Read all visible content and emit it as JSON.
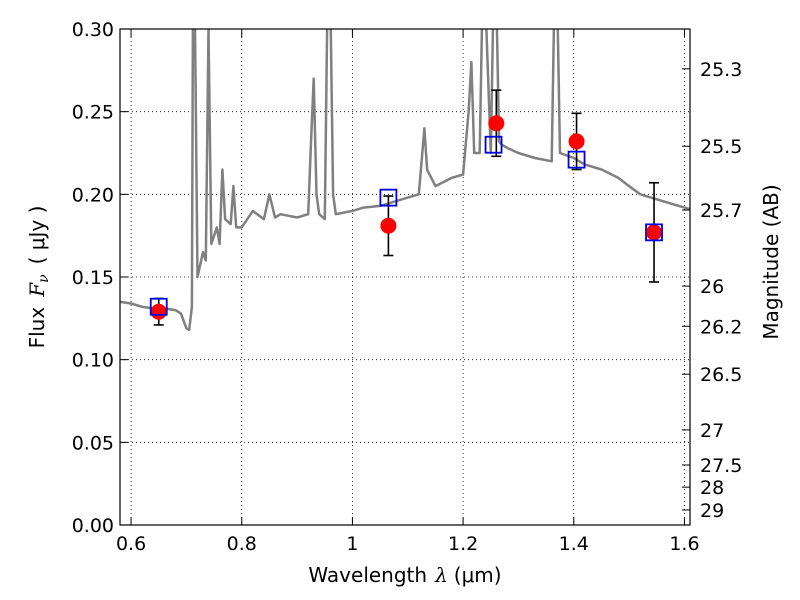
{
  "chart_data": {
    "type": "scatter",
    "title": "",
    "xlabel": {
      "text": "Wavelength",
      "symbol": "λ",
      "unit": "(μm)"
    },
    "ylabel": {
      "text": "Flux",
      "symbol": "F",
      "subscript": "ν",
      "unit": "( μJy )"
    },
    "y2label": "Magnitude (AB)",
    "xlim": [
      0.58,
      1.61
    ],
    "ylim": [
      0.0,
      0.3
    ],
    "grid": true,
    "xticks": [
      0.6,
      0.8,
      1.0,
      1.2,
      1.4,
      1.6
    ],
    "xtick_labels": [
      "0.6",
      "0.8",
      "1",
      "1.2",
      "1.4",
      "1.6"
    ],
    "yticks": [
      0.0,
      0.05,
      0.1,
      0.15,
      0.2,
      0.25,
      0.3
    ],
    "ytick_labels": [
      "0.00",
      "0.05",
      "0.10",
      "0.15",
      "0.20",
      "0.25",
      "0.30"
    ],
    "y2ticks": [
      {
        "label": "25.3",
        "flux": 0.2759
      },
      {
        "label": "25.5",
        "flux": 0.2291
      },
      {
        "label": "25.7",
        "flux": 0.1905
      },
      {
        "label": "26",
        "flux": 0.1445
      },
      {
        "label": "26.2",
        "flux": 0.1202
      },
      {
        "label": "26.5",
        "flux": 0.0912
      },
      {
        "label": "27",
        "flux": 0.0575
      },
      {
        "label": "27.5",
        "flux": 0.0363
      },
      {
        "label": "28",
        "flux": 0.0229
      },
      {
        "label": "29",
        "flux": 0.0091
      }
    ],
    "series": [
      {
        "kind": "model_sed",
        "color": "#808080",
        "x": [
          0.58,
          0.6,
          0.62,
          0.64,
          0.66,
          0.68,
          0.69,
          0.7,
          0.705,
          0.71,
          0.712,
          0.715,
          0.72,
          0.73,
          0.735,
          0.74,
          0.745,
          0.75,
          0.755,
          0.76,
          0.765,
          0.77,
          0.78,
          0.785,
          0.79,
          0.8,
          0.82,
          0.84,
          0.85,
          0.86,
          0.87,
          0.9,
          0.92,
          0.925,
          0.93,
          0.935,
          0.94,
          0.95,
          0.955,
          0.96,
          0.965,
          0.97,
          1.0,
          1.02,
          1.05,
          1.08,
          1.1,
          1.12,
          1.125,
          1.13,
          1.135,
          1.15,
          1.18,
          1.2,
          1.21,
          1.215,
          1.22,
          1.23,
          1.235,
          1.24,
          1.25,
          1.255,
          1.26,
          1.265,
          1.27,
          1.28,
          1.3,
          1.33,
          1.36,
          1.365,
          1.37,
          1.375,
          1.4,
          1.41,
          1.42,
          1.45,
          1.48,
          1.5,
          1.52,
          1.55,
          1.58,
          1.6,
          1.61
        ],
        "y": [
          0.135,
          0.134,
          0.132,
          0.131,
          0.131,
          0.13,
          0.128,
          0.119,
          0.118,
          0.132,
          0.32,
          0.32,
          0.15,
          0.165,
          0.16,
          0.3,
          0.17,
          0.175,
          0.18,
          0.17,
          0.215,
          0.185,
          0.182,
          0.205,
          0.18,
          0.18,
          0.19,
          0.185,
          0.2,
          0.186,
          0.188,
          0.186,
          0.188,
          0.23,
          0.27,
          0.2,
          0.188,
          0.185,
          0.32,
          0.32,
          0.2,
          0.188,
          0.19,
          0.192,
          0.193,
          0.196,
          0.198,
          0.2,
          0.22,
          0.24,
          0.215,
          0.205,
          0.21,
          0.212,
          0.25,
          0.28,
          0.225,
          0.225,
          0.32,
          0.32,
          0.225,
          0.32,
          0.32,
          0.232,
          0.23,
          0.228,
          0.225,
          0.222,
          0.22,
          0.32,
          0.32,
          0.225,
          0.222,
          0.22,
          0.218,
          0.215,
          0.21,
          0.205,
          0.2,
          0.197,
          0.194,
          0.192,
          0.191
        ]
      },
      {
        "kind": "model_photometry",
        "color": "#0000dd",
        "marker": "open-square",
        "x": [
          0.65,
          1.065,
          1.255,
          1.405,
          1.545
        ],
        "y": [
          0.132,
          0.198,
          0.23,
          0.221,
          0.177
        ]
      },
      {
        "kind": "observed",
        "color": "#ff0000",
        "marker": "filled-circle",
        "x": [
          0.65,
          1.065,
          1.26,
          1.405,
          1.545
        ],
        "y": [
          0.129,
          0.181,
          0.243,
          0.232,
          0.177
        ],
        "yerr": [
          0.008,
          0.018,
          0.02,
          0.017,
          0.03
        ]
      }
    ]
  }
}
